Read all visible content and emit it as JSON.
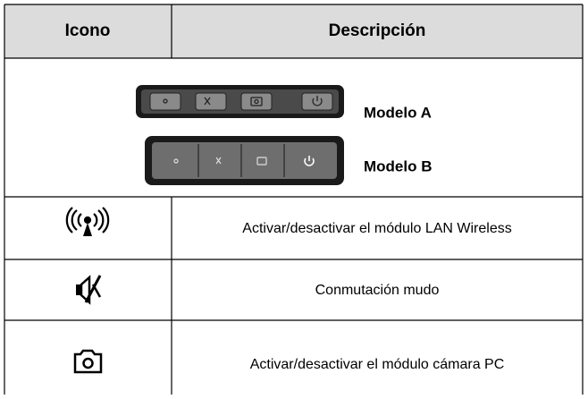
{
  "table": {
    "header": [
      "Icono",
      "Descripción"
    ],
    "models": [
      "Modelo A",
      "Modelo B"
    ],
    "rows": [
      "Activar/desactivar el módulo LAN Wireless",
      "Conmutación mudo",
      "Activar/desactivar el módulo cámara PC"
    ]
  }
}
